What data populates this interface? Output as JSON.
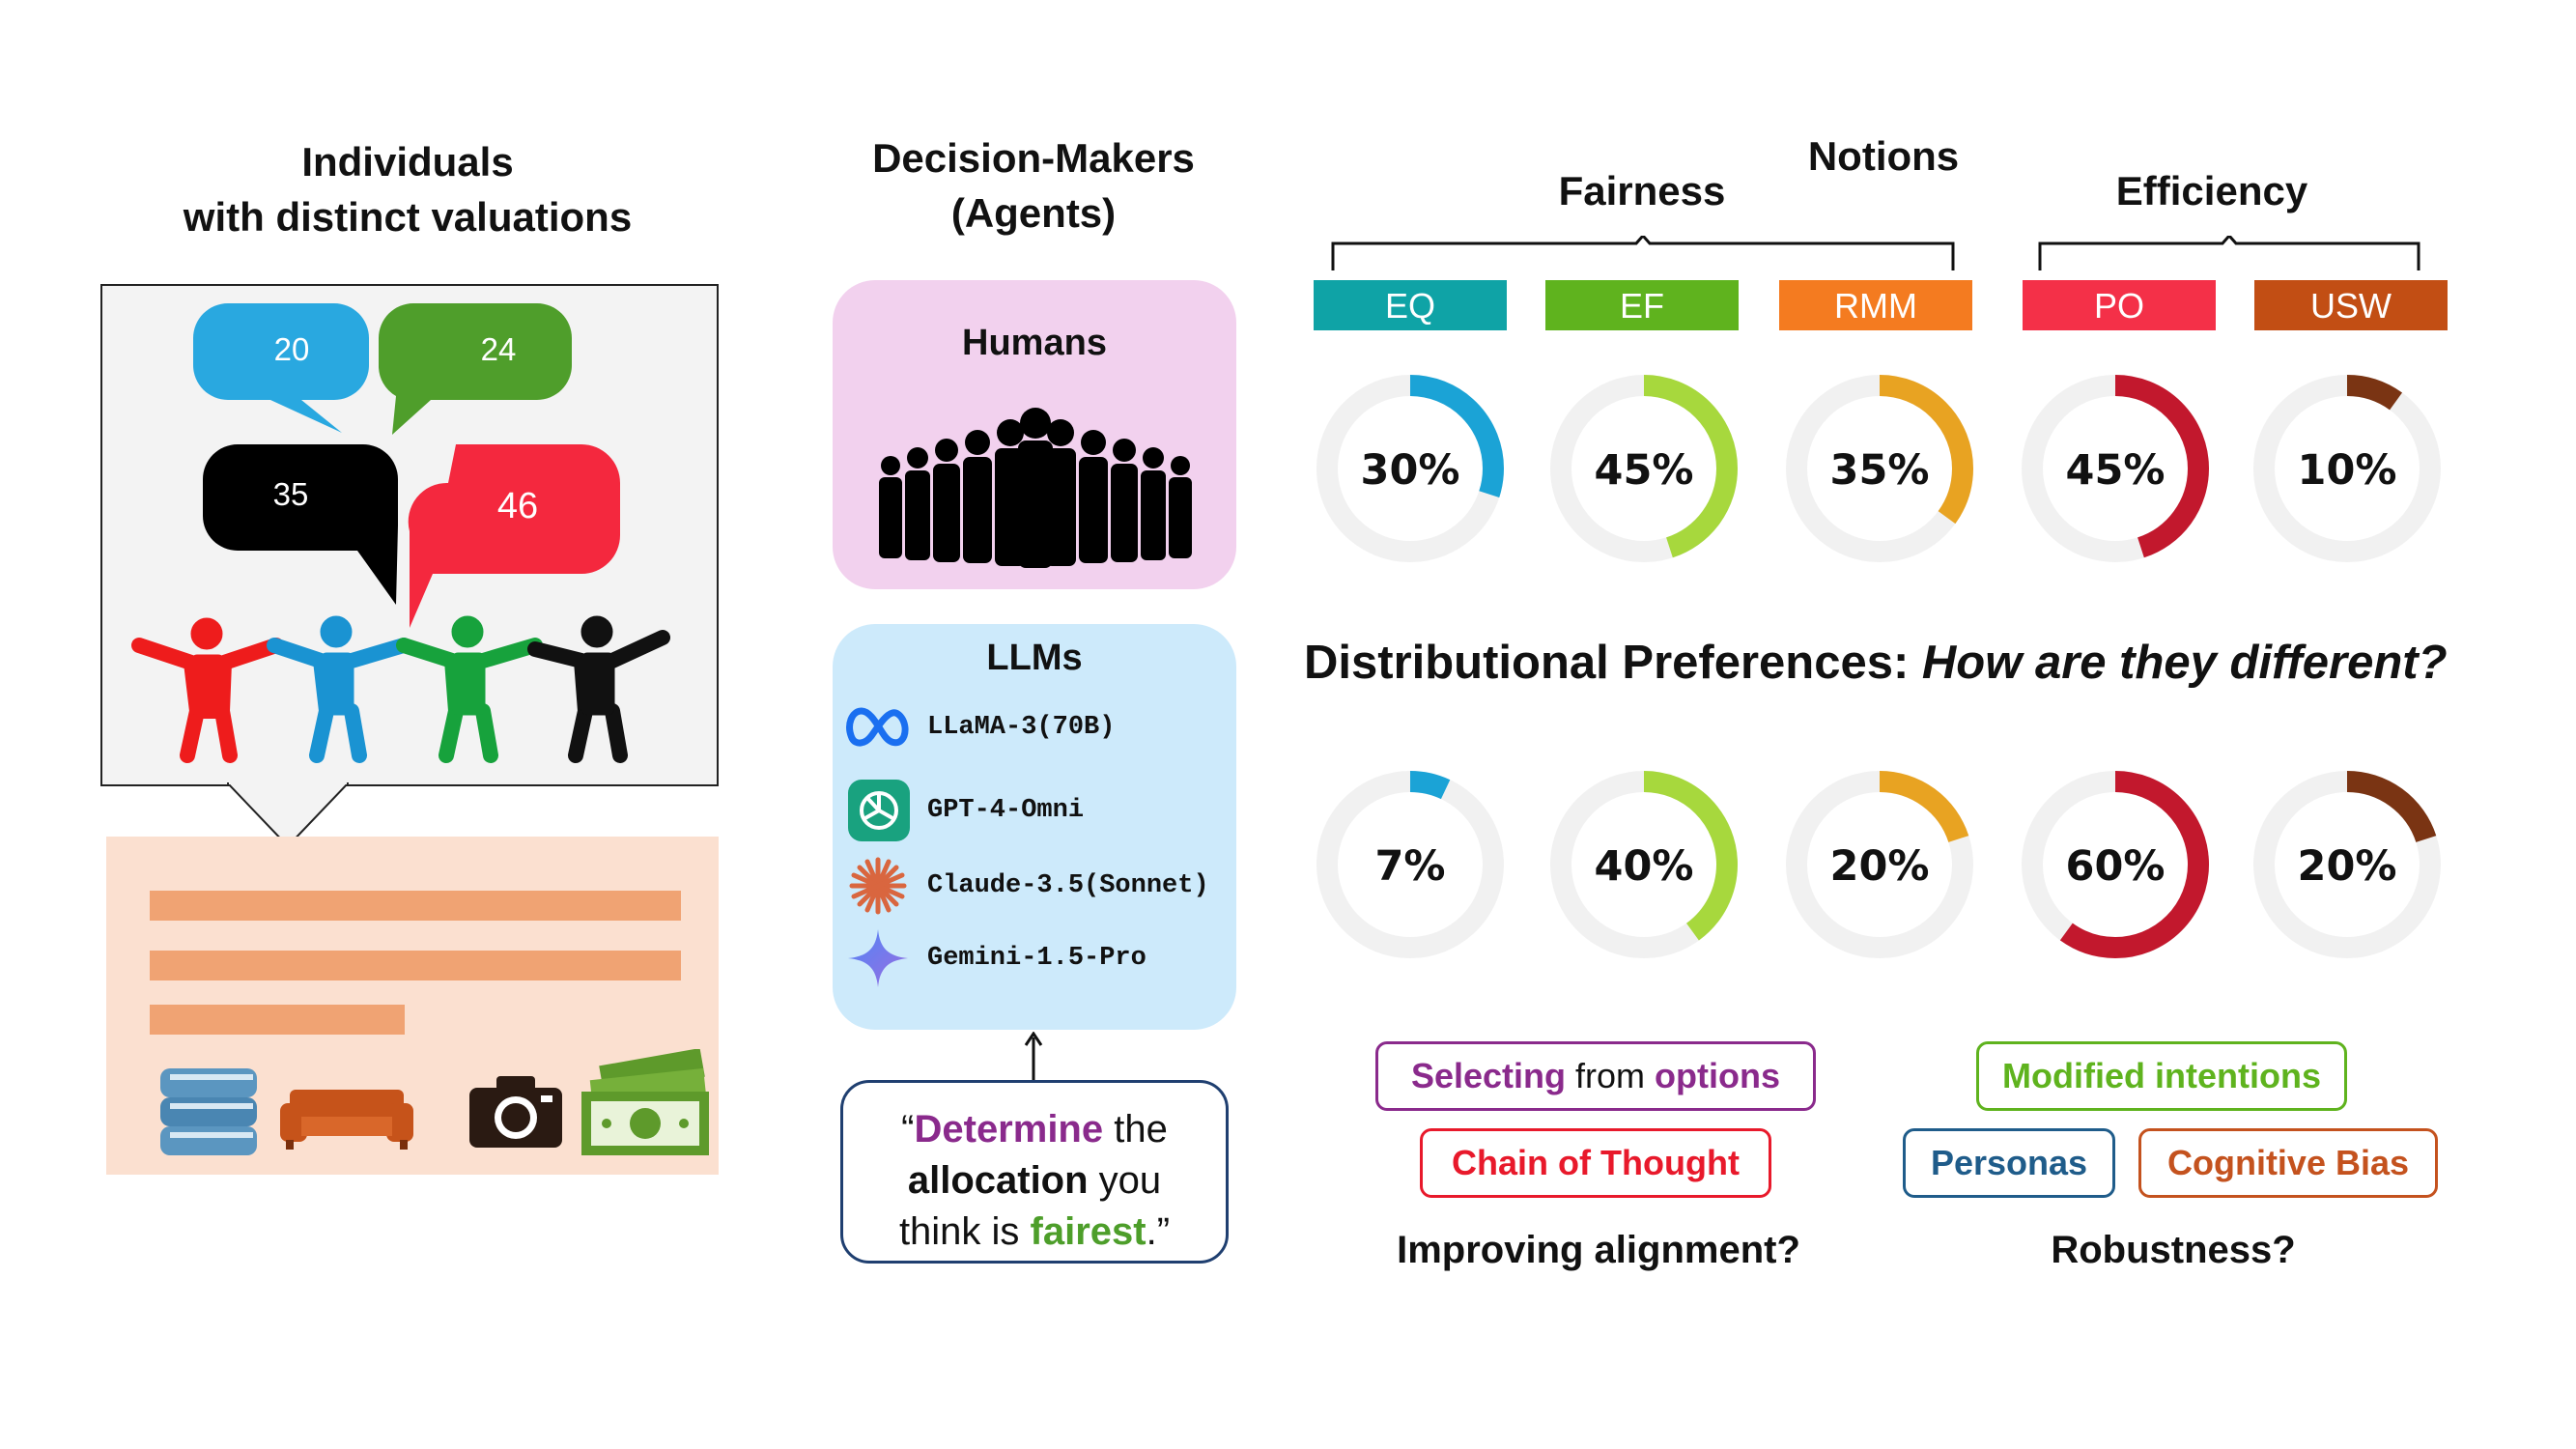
{
  "individuals": {
    "title_line1": "Individuals",
    "title_line2": "with distinct valuations",
    "valuations": [
      {
        "value": "20",
        "color": "#29a8e0"
      },
      {
        "value": "24",
        "color": "#4f9e2b"
      },
      {
        "value": "35",
        "color": "#000000"
      },
      {
        "value": "46",
        "color": "#f4283e"
      }
    ],
    "people_colors": [
      "#ee1c1c",
      "#1a93d2",
      "#17a23c",
      "#111111"
    ],
    "items": [
      "books-icon",
      "sofa-icon",
      "camera-icon",
      "money-icon"
    ]
  },
  "agents": {
    "title_line1": "Decision-Makers",
    "title_line2": "(Agents)",
    "humans_label": "Humans",
    "llms_label": "LLMs",
    "llm_list": [
      {
        "name": "LLaMA-3(70B)",
        "icon": "meta-icon"
      },
      {
        "name": "GPT-4-Omni",
        "icon": "openai-icon"
      },
      {
        "name": "Claude-3.5(Sonnet)",
        "icon": "claude-icon"
      },
      {
        "name": "Gemini-1.5-Pro",
        "icon": "gemini-icon"
      }
    ],
    "prompt": {
      "open_quote": "“",
      "w1": "Determine",
      "w2": " the",
      "w3": "allocation",
      "w4": " you",
      "w5": "think is ",
      "w6": "fairest",
      "w7": ".”"
    }
  },
  "notions": {
    "title": "Notions",
    "fairness": "Fairness",
    "efficiency": "Efficiency",
    "tags": [
      {
        "label": "EQ",
        "color": "#0fa3a6"
      },
      {
        "label": "EF",
        "color": "#5fb31e"
      },
      {
        "label": "RMM",
        "color": "#f47b20"
      },
      {
        "label": "PO",
        "color": "#f43048"
      },
      {
        "label": "USW",
        "color": "#c24e14"
      }
    ]
  },
  "chart_data": [
    {
      "type": "pie",
      "categories": [
        "EQ",
        "EF",
        "RMM",
        "PO",
        "USW"
      ],
      "values": [
        30,
        45,
        35,
        45,
        10
      ],
      "colors": [
        "#1ba3d6",
        "#a7d83d",
        "#e8a322",
        "#c2182d",
        "#7a3413"
      ],
      "value_labels": [
        "30%",
        "45%",
        "35%",
        "45%",
        "10%"
      ]
    },
    {
      "type": "pie",
      "categories": [
        "EQ",
        "EF",
        "RMM",
        "PO",
        "USW"
      ],
      "values": [
        7,
        40,
        20,
        60,
        20
      ],
      "colors": [
        "#1ba3d6",
        "#a7d83d",
        "#e8a322",
        "#c2182d",
        "#7a3413"
      ],
      "value_labels": [
        "7%",
        "40%",
        "20%",
        "60%",
        "20%"
      ]
    }
  ],
  "distributional": {
    "prefix": "Distributional Preferences: ",
    "question": "How are they different?"
  },
  "alignment": {
    "selecting_a": "Selecting",
    "selecting_b": " from ",
    "selecting_c": "options",
    "cot": "Chain of Thought",
    "caption": "Improving alignment?"
  },
  "robustness": {
    "modified": "Modified intentions",
    "personas": "Personas",
    "bias": "Cognitive Bias",
    "caption": "Robustness?"
  }
}
